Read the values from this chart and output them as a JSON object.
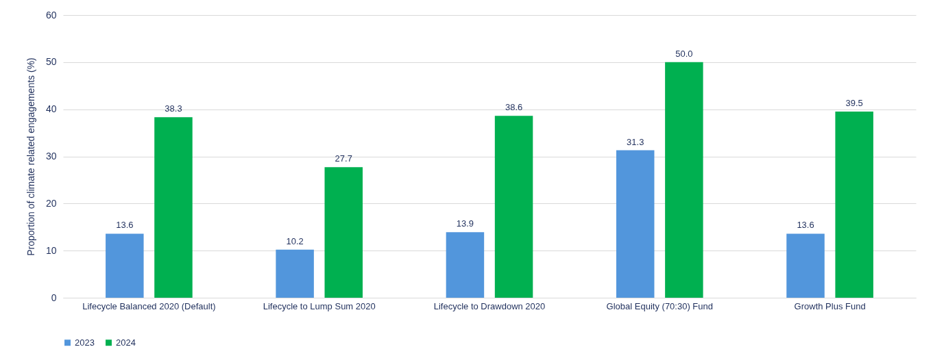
{
  "chart_data": {
    "type": "bar",
    "ylabel": "Proportion of climate related engagements (%)",
    "categories": [
      "Lifecycle Balanced 2020 (Default)",
      "Lifecycle to Lump Sum 2020",
      "Lifecycle to Drawdown 2020",
      "Global Equity (70:30) Fund",
      "Growth Plus Fund"
    ],
    "series": [
      {
        "name": "2023",
        "color": "#5296dc",
        "values": [
          13.6,
          10.2,
          13.9,
          31.3,
          13.6
        ],
        "value_labels": [
          "13.6",
          "10.2",
          "13.9",
          "31.3",
          "13.6"
        ]
      },
      {
        "name": "2024",
        "color": "#00b050",
        "values": [
          38.3,
          27.7,
          38.6,
          50.0,
          39.5
        ],
        "value_labels": [
          "38.3",
          "27.7",
          "38.6",
          "50.0",
          "39.5"
        ]
      }
    ],
    "ylim": [
      0,
      60
    ],
    "yticks": [
      0,
      10,
      20,
      30,
      40,
      50,
      60
    ],
    "grid": "y",
    "legend": "bottom"
  }
}
